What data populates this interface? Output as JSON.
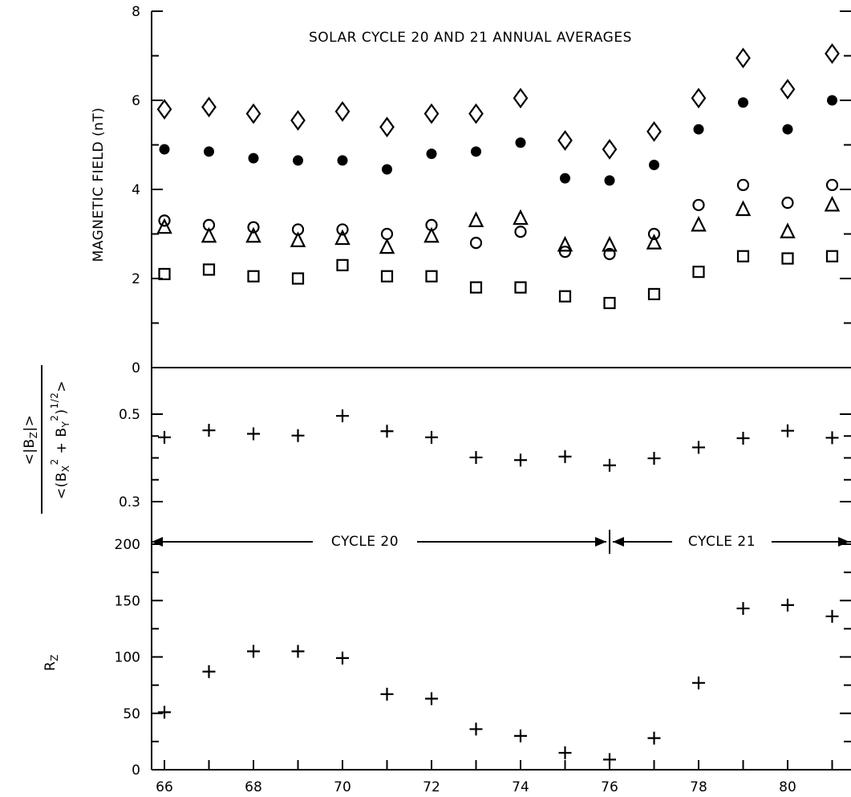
{
  "title": "SOLAR CYCLE 20 AND 21 ANNUAL AVERAGES",
  "chart_data": [
    {
      "panel": "magnetic-field",
      "type": "scatter",
      "ylabel": "MAGNETIC FIELD (nT)",
      "ylim": [
        0,
        8
      ],
      "yticks": [
        "0",
        "2",
        "4",
        "6",
        "8"
      ],
      "x": [
        66,
        67,
        68,
        69,
        70,
        71,
        72,
        73,
        74,
        75,
        76,
        77,
        78,
        79,
        80,
        81
      ],
      "series": [
        {
          "marker": "diamond",
          "values": [
            5.8,
            5.85,
            5.7,
            5.55,
            5.75,
            5.4,
            5.7,
            5.7,
            6.05,
            5.1,
            4.9,
            5.3,
            6.05,
            6.95,
            6.25,
            7.05
          ]
        },
        {
          "marker": "filled-circle",
          "values": [
            4.9,
            4.85,
            4.7,
            4.65,
            4.65,
            4.45,
            4.8,
            4.85,
            5.05,
            4.25,
            4.2,
            4.55,
            5.35,
            5.95,
            5.35,
            6.0
          ]
        },
        {
          "marker": "open-circle",
          "values": [
            3.3,
            3.2,
            3.15,
            3.1,
            3.1,
            3.0,
            3.2,
            2.8,
            3.05,
            2.6,
            2.55,
            3.0,
            3.65,
            4.1,
            3.7,
            4.1
          ]
        },
        {
          "marker": "triangle",
          "values": [
            3.15,
            2.95,
            2.95,
            2.85,
            2.9,
            2.7,
            2.95,
            3.3,
            3.35,
            2.75,
            2.75,
            2.8,
            3.2,
            3.55,
            3.05,
            3.65
          ]
        },
        {
          "marker": "square",
          "values": [
            2.1,
            2.2,
            2.05,
            2.0,
            2.3,
            2.05,
            2.05,
            1.8,
            1.8,
            1.6,
            1.45,
            1.65,
            2.15,
            2.5,
            2.45,
            2.5
          ]
        }
      ]
    },
    {
      "panel": "ratio",
      "type": "scatter",
      "ylabel_num": "<|B",
      "ylabel_num_sub": "Z",
      "ylabel_num_end": "|>",
      "ylabel_den_a": "<(B",
      "ylabel_den_b": "2",
      "ylabel_den_c": " + B",
      "ylabel_den_d": "2",
      "ylabel_den_e": ")",
      "ylabel_den_f": "1/2",
      "ylabel_den_g": ">",
      "ylabel_den_sub1": "X",
      "ylabel_den_sub2": "Y",
      "ylim": [
        0.3,
        0.5
      ],
      "yticks": [
        "0.3",
        "0.5"
      ],
      "x": [
        66,
        67,
        68,
        69,
        70,
        71,
        72,
        73,
        74,
        75,
        76,
        77,
        78,
        79,
        80,
        81
      ],
      "series": [
        {
          "marker": "plus",
          "values": [
            0.447,
            0.463,
            0.455,
            0.451,
            0.496,
            0.461,
            0.447,
            0.401,
            0.395,
            0.403,
            0.383,
            0.399,
            0.424,
            0.445,
            0.462,
            0.446
          ]
        }
      ]
    },
    {
      "panel": "sunspot",
      "type": "scatter",
      "ylabel": "R",
      "ylabel_sub": "Z",
      "ylim": [
        0,
        200
      ],
      "yticks": [
        "0",
        "50",
        "100",
        "150",
        "200"
      ],
      "xlim": [
        66,
        81
      ],
      "xticks": [
        "66",
        "68",
        "70",
        "72",
        "74",
        "76",
        "78",
        "80"
      ],
      "cycle_labels": [
        "CYCLE 20",
        "CYCLE 21"
      ],
      "x": [
        66,
        67,
        68,
        69,
        70,
        71,
        72,
        73,
        74,
        75,
        76,
        77,
        78,
        79,
        80,
        81
      ],
      "series": [
        {
          "marker": "plus",
          "values": [
            51,
            87,
            105,
            105,
            99,
            67,
            63,
            36,
            30,
            15,
            9,
            28,
            77,
            143,
            146,
            136
          ]
        }
      ]
    }
  ]
}
